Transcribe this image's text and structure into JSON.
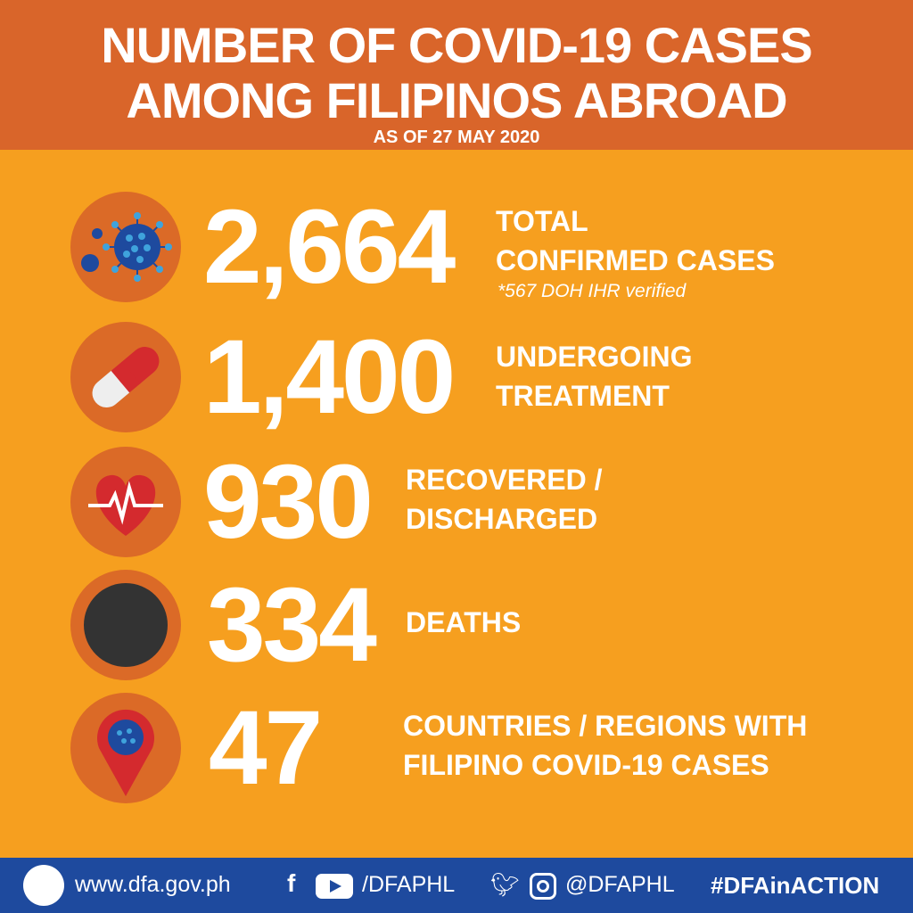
{
  "header": {
    "title_line1": "NUMBER OF COVID-19 CASES",
    "title_line2": "AMONG FILIPINOS ABROAD",
    "subtitle": "AS OF 27 MAY 2020"
  },
  "stats": [
    {
      "icon": "virus-icon",
      "value": "2,664",
      "label1": "TOTAL",
      "label2": "CONFIRMED CASES",
      "note": "*567 DOH IHR verified"
    },
    {
      "icon": "pill-icon",
      "value": "1,400",
      "label1": "UNDERGOING",
      "label2": "TREATMENT"
    },
    {
      "icon": "heart-pulse-icon",
      "value": "930",
      "label1": "RECOVERED /",
      "label2": "DISCHARGED"
    },
    {
      "icon": "black-circle-icon",
      "value": "334",
      "label1": "DEATHS"
    },
    {
      "icon": "map-pin-virus-icon",
      "value": "47",
      "label1": "COUNTRIES / REGIONS WITH",
      "label2": "FILIPINO COVID-19 CASES"
    }
  ],
  "footer": {
    "website": "www.dfa.gov.ph",
    "fb_yt_handle": "/DFAPHL",
    "tw_ig_handle": "@DFAPHL",
    "hashtag": "#DFAinACTION"
  },
  "colors": {
    "header": "#D9652A",
    "background": "#F69F1F",
    "footer": "#1E4A9E"
  }
}
